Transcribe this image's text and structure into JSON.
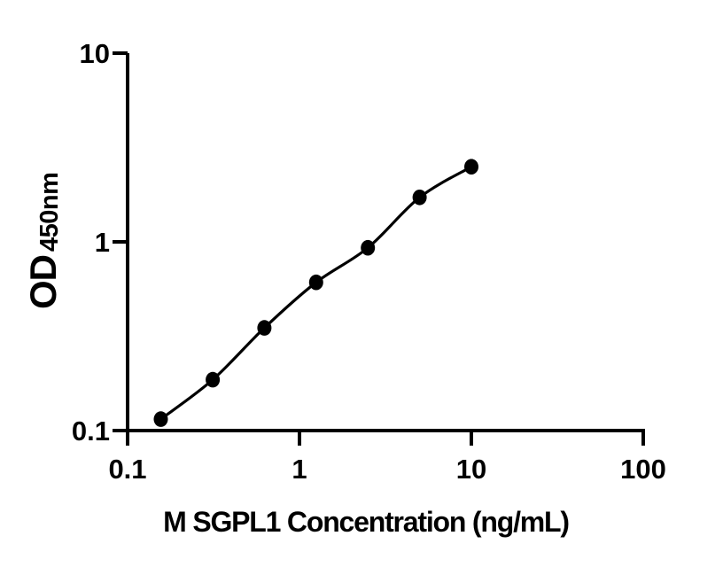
{
  "colors": {
    "background": "#ffffff",
    "axis": "#000000",
    "curve": "#000000",
    "marker": "#000000",
    "text": "#000000"
  },
  "chart_data": {
    "type": "line",
    "title": "",
    "xlabel": "M SGPL1 Concentration (ng/mL)",
    "ylabel": "OD",
    "ylabel_subscript": "450nm",
    "x_scale": "log",
    "y_scale": "log",
    "xlim": [
      0.1,
      100
    ],
    "ylim": [
      0.1,
      10
    ],
    "grid": false,
    "legend": "none",
    "x_ticks": [
      {
        "value": 0.1,
        "label": "0.1"
      },
      {
        "value": 1,
        "label": "1"
      },
      {
        "value": 10,
        "label": "10"
      },
      {
        "value": 100,
        "label": "100"
      }
    ],
    "y_ticks": [
      {
        "value": 0.1,
        "label": "0.1"
      },
      {
        "value": 1,
        "label": "1"
      },
      {
        "value": 10,
        "label": "10"
      }
    ],
    "series": [
      {
        "marker": "filled-circle",
        "color": "#000000",
        "points": [
          {
            "x": 0.156,
            "y": 0.115
          },
          {
            "x": 0.313,
            "y": 0.186
          },
          {
            "x": 0.625,
            "y": 0.35
          },
          {
            "x": 1.25,
            "y": 0.61
          },
          {
            "x": 2.5,
            "y": 0.93
          },
          {
            "x": 5,
            "y": 1.72
          },
          {
            "x": 10,
            "y": 2.5
          }
        ]
      }
    ]
  }
}
